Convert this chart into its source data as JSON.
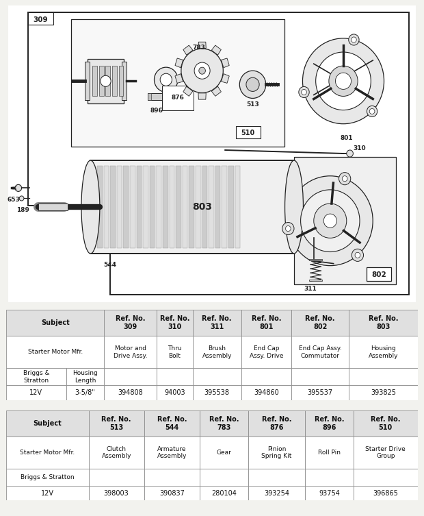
{
  "bg_color": "#f2f2ee",
  "diagram_bg": "#ffffff",
  "table1": {
    "header_cols": [
      "Subject",
      "",
      "Ref. No.\n309",
      "Ref. No.\n310",
      "Ref. No.\n311",
      "Ref. No.\n801",
      "Ref. No.\n802",
      "Ref. No.\n803"
    ],
    "row1_merged": "Starter Motor Mfr.",
    "row1_data": [
      "Motor and\nDrive Assy.",
      "Thru\nBolt",
      "Brush\nAssembly",
      "End Cap\nAssy. Drive",
      "End Cap Assy.\nCommutator",
      "Housing\nAssembly"
    ],
    "row2_col1": "Briggs &\nStratton",
    "row2_col2": "Housing\nLength",
    "row3_col1": "12V",
    "row3_col2": "3-5/8\"",
    "row3_data": [
      "394808",
      "94003",
      "395538",
      "394860",
      "395537",
      "393825"
    ]
  },
  "table2": {
    "header_cols": [
      "Subject",
      "Ref. No.\n513",
      "Ref. No.\n544",
      "Ref. No.\n783",
      "Ref. No.\n876",
      "Ref. No.\n896",
      "Ref. No.\n510"
    ],
    "row1_merged": "Starter Motor Mfr.",
    "row1_data": [
      "Clutch\nAssembly",
      "Armature\nAssembly",
      "Gear",
      "Pinion\nSpring Kit",
      "Roll Pin",
      "Starter Drive\nGroup"
    ],
    "row2_col1": "Briggs & Stratton",
    "row3_col1": "12V",
    "row3_data": [
      "398003",
      "390837",
      "280104",
      "393254",
      "93754",
      "396865"
    ]
  },
  "colors": {
    "table_header_bg": "#e0e0e0",
    "table_border": "#888888",
    "table_bg": "#ffffff",
    "line_color": "#222222",
    "fill_light": "#f0f0f0",
    "fill_mid": "#d8d8d8",
    "fill_dark": "#aaaaaa"
  }
}
